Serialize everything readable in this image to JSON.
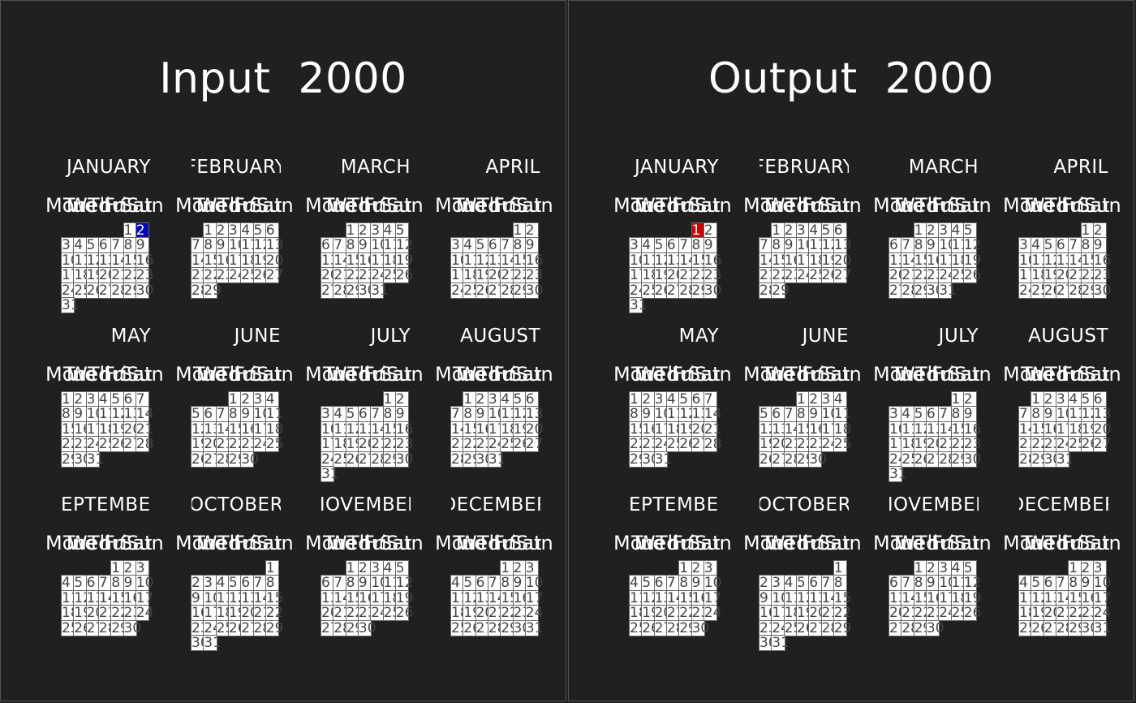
{
  "panels": [
    {
      "title": "Input  2000",
      "highlight": {
        "month": 0,
        "day": 2,
        "color": "#0a0ab4"
      }
    },
    {
      "title": "Output  2000",
      "highlight": {
        "month": 0,
        "day": 1,
        "color": "#cc0000"
      }
    }
  ],
  "weekday_labels": [
    "Mon",
    "Tue",
    "Wed",
    "Thu",
    "Fri",
    "Sat",
    "Sun"
  ],
  "months": [
    {
      "name": "JANUARY",
      "start": 5,
      "days": 31
    },
    {
      "name": "FEBRUARY",
      "start": 1,
      "days": 29
    },
    {
      "name": "MARCH",
      "start": 2,
      "days": 31
    },
    {
      "name": "APRIL",
      "start": 5,
      "days": 30
    },
    {
      "name": "MAY",
      "start": 0,
      "days": 31
    },
    {
      "name": "JUNE",
      "start": 3,
      "days": 30
    },
    {
      "name": "JULY",
      "start": 5,
      "days": 31
    },
    {
      "name": "AUGUST",
      "start": 1,
      "days": 31
    },
    {
      "name": "SEPTEMBER",
      "start": 4,
      "days": 30
    },
    {
      "name": "OCTOBER",
      "start": 6,
      "days": 31
    },
    {
      "name": "NOVEMBER",
      "start": 2,
      "days": 30
    },
    {
      "name": "DECEMBER",
      "start": 4,
      "days": 31
    }
  ],
  "colors": {
    "background": "#1f2022",
    "cell": "#ffffff",
    "cell_text": "#444444"
  }
}
